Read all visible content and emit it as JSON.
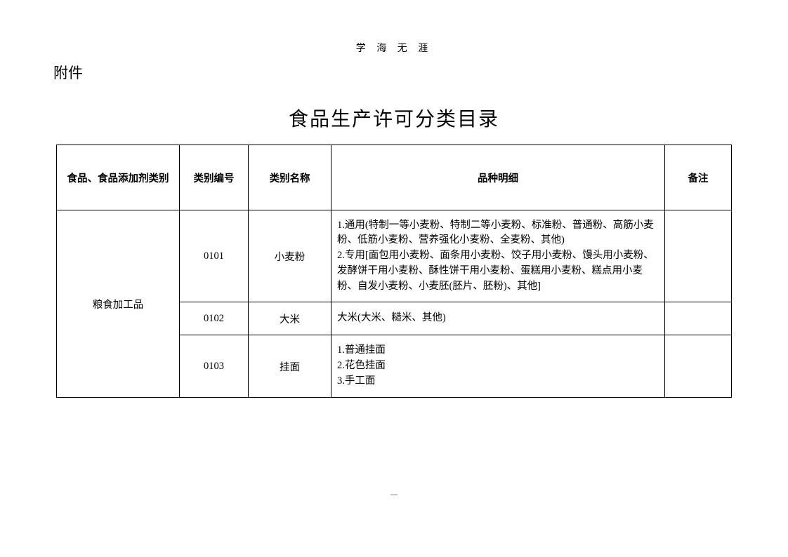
{
  "header_text": "学 海 无  涯",
  "attachment_label": "附件",
  "title": "食品生产许可分类目录",
  "columns": {
    "c0": "食品、食品添加剂类别",
    "c1": "类别编号",
    "c2": "类别名称",
    "c3": "品种明细",
    "c4": "备注"
  },
  "group_category": "粮食加工品",
  "rows": {
    "r0": {
      "code": "0101",
      "name": "小麦粉",
      "detail": "1.通用(特制一等小麦粉、特制二等小麦粉、标准粉、普通粉、高筋小麦粉、低筋小麦粉、营养强化小麦粉、全麦粉、其他)\n2.专用[面包用小麦粉、面条用小麦粉、饺子用小麦粉、馒头用小麦粉、发酵饼干用小麦粉、酥性饼干用小麦粉、蛋糕用小麦粉、糕点用小麦粉、自发小麦粉、小麦胚(胚片、胚粉)、其他]",
      "note": ""
    },
    "r1": {
      "code": "0102",
      "name": "大米",
      "detail": "大米(大米、糙米、其他)",
      "note": ""
    },
    "r2": {
      "code": "0103",
      "name": "挂面",
      "detail": "1.普通挂面\n2.花色挂面\n3.手工面",
      "note": ""
    }
  },
  "footer": "—"
}
